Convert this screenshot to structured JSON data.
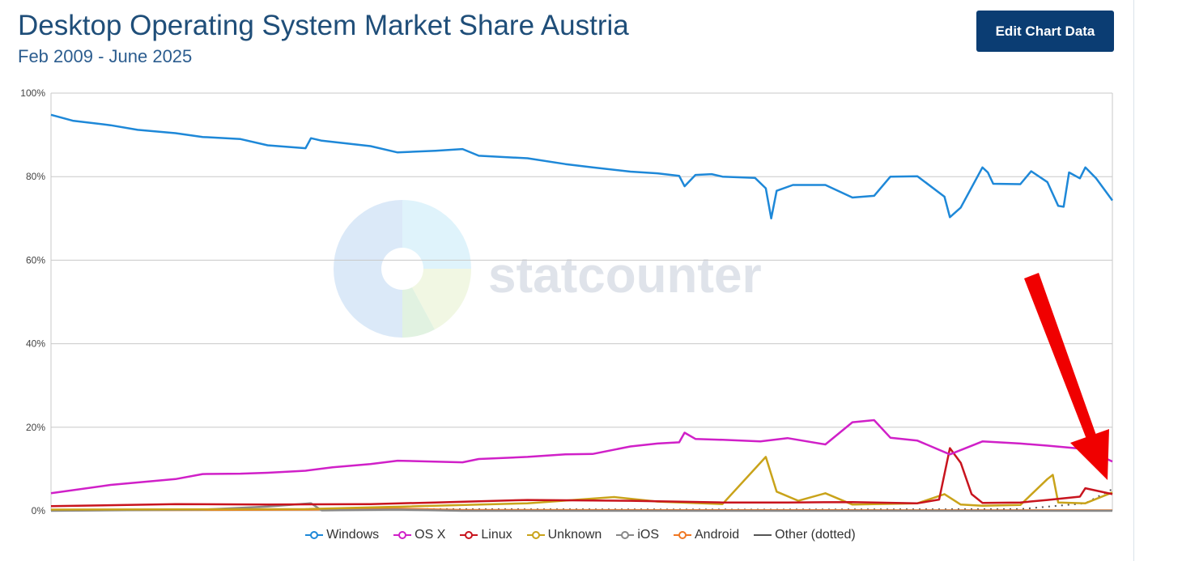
{
  "header": {
    "title": "Desktop Operating System Market Share Austria",
    "subtitle": "Feb 2009 - June 2025",
    "edit_button": "Edit Chart Data"
  },
  "watermark": {
    "text": "statcounter"
  },
  "chart_data": {
    "type": "line",
    "title": "Desktop Operating System Market Share Austria",
    "subtitle": "Feb 2009 - June 2025",
    "x_start": "2009-02",
    "x_end": "2025-06",
    "ylim": [
      0,
      100
    ],
    "y_ticks": [
      "0%",
      "20%",
      "40%",
      "60%",
      "80%",
      "100%"
    ],
    "grid": true,
    "legend_position": "bottom",
    "annotation": "red arrow pointing to the recent rise of the dotted 'Other' series",
    "series": [
      {
        "name": "Windows",
        "color": "#1e88d8",
        "dotted": false,
        "points": [
          [
            "2009-02",
            94.8
          ],
          [
            "2009-06",
            93.4
          ],
          [
            "2010-01",
            92.3
          ],
          [
            "2010-06",
            91.2
          ],
          [
            "2011-01",
            90.4
          ],
          [
            "2011-06",
            89.5
          ],
          [
            "2012-01",
            89.0
          ],
          [
            "2012-06",
            87.5
          ],
          [
            "2013-01",
            86.8
          ],
          [
            "2013-02",
            89.2
          ],
          [
            "2013-04",
            88.6
          ],
          [
            "2014-01",
            87.3
          ],
          [
            "2014-06",
            85.8
          ],
          [
            "2015-01",
            86.2
          ],
          [
            "2015-06",
            86.6
          ],
          [
            "2015-09",
            85.0
          ],
          [
            "2016-06",
            84.4
          ],
          [
            "2017-01",
            83.0
          ],
          [
            "2017-06",
            82.2
          ],
          [
            "2018-01",
            81.2
          ],
          [
            "2018-06",
            80.8
          ],
          [
            "2018-10",
            80.2
          ],
          [
            "2018-11",
            77.7
          ],
          [
            "2019-01",
            80.4
          ],
          [
            "2019-04",
            80.6
          ],
          [
            "2019-06",
            80.0
          ],
          [
            "2019-12",
            79.7
          ],
          [
            "2020-02",
            77.2
          ],
          [
            "2020-03",
            70.0
          ],
          [
            "2020-04",
            76.6
          ],
          [
            "2020-07",
            78.0
          ],
          [
            "2021-01",
            78.0
          ],
          [
            "2021-06",
            75.0
          ],
          [
            "2021-10",
            75.4
          ],
          [
            "2022-01",
            80.0
          ],
          [
            "2022-06",
            80.1
          ],
          [
            "2022-11",
            75.2
          ],
          [
            "2022-12",
            70.3
          ],
          [
            "2023-02",
            72.6
          ],
          [
            "2023-06",
            82.2
          ],
          [
            "2023-07",
            81.0
          ],
          [
            "2023-08",
            78.3
          ],
          [
            "2024-01",
            78.2
          ],
          [
            "2024-03",
            81.3
          ],
          [
            "2024-06",
            78.7
          ],
          [
            "2024-08",
            73.0
          ],
          [
            "2024-09",
            72.8
          ],
          [
            "2024-10",
            81.0
          ],
          [
            "2024-12",
            79.6
          ],
          [
            "2025-01",
            82.2
          ],
          [
            "2025-03",
            79.6
          ],
          [
            "2025-06",
            74.3
          ]
        ]
      },
      {
        "name": "OS X",
        "color": "#d020c8",
        "dotted": false,
        "points": [
          [
            "2009-02",
            4.2
          ],
          [
            "2010-01",
            6.2
          ],
          [
            "2011-01",
            7.6
          ],
          [
            "2011-06",
            8.8
          ],
          [
            "2012-01",
            8.9
          ],
          [
            "2012-06",
            9.1
          ],
          [
            "2013-01",
            9.6
          ],
          [
            "2013-06",
            10.4
          ],
          [
            "2014-01",
            11.2
          ],
          [
            "2014-06",
            12.0
          ],
          [
            "2015-06",
            11.6
          ],
          [
            "2015-09",
            12.4
          ],
          [
            "2016-06",
            12.9
          ],
          [
            "2017-01",
            13.5
          ],
          [
            "2017-06",
            13.6
          ],
          [
            "2018-01",
            15.4
          ],
          [
            "2018-06",
            16.1
          ],
          [
            "2018-10",
            16.4
          ],
          [
            "2018-11",
            18.7
          ],
          [
            "2019-01",
            17.2
          ],
          [
            "2019-06",
            17.0
          ],
          [
            "2020-01",
            16.6
          ],
          [
            "2020-06",
            17.4
          ],
          [
            "2021-01",
            15.9
          ],
          [
            "2021-06",
            21.2
          ],
          [
            "2021-10",
            21.7
          ],
          [
            "2022-01",
            17.5
          ],
          [
            "2022-06",
            16.8
          ],
          [
            "2022-12",
            13.5
          ],
          [
            "2023-06",
            16.6
          ],
          [
            "2024-01",
            16.1
          ],
          [
            "2024-06",
            15.6
          ],
          [
            "2024-12",
            14.9
          ],
          [
            "2025-03",
            13.6
          ],
          [
            "2025-06",
            11.8
          ]
        ]
      },
      {
        "name": "Linux",
        "color": "#c8141e",
        "dotted": false,
        "points": [
          [
            "2009-02",
            1.1
          ],
          [
            "2011-01",
            1.6
          ],
          [
            "2012-06",
            1.5
          ],
          [
            "2014-01",
            1.6
          ],
          [
            "2015-01",
            2.0
          ],
          [
            "2016-06",
            2.6
          ],
          [
            "2018-01",
            2.4
          ],
          [
            "2019-06",
            2.0
          ],
          [
            "2020-06",
            2.0
          ],
          [
            "2021-06",
            2.1
          ],
          [
            "2022-06",
            1.8
          ],
          [
            "2022-10",
            2.7
          ],
          [
            "2022-12",
            15.0
          ],
          [
            "2023-02",
            11.5
          ],
          [
            "2023-04",
            4.0
          ],
          [
            "2023-06",
            1.9
          ],
          [
            "2024-01",
            2.0
          ],
          [
            "2024-06",
            2.6
          ],
          [
            "2024-12",
            3.4
          ],
          [
            "2025-01",
            5.4
          ],
          [
            "2025-06",
            4.0
          ]
        ]
      },
      {
        "name": "Unknown",
        "color": "#c9a31a",
        "dotted": false,
        "points": [
          [
            "2009-02",
            0.3
          ],
          [
            "2013-01",
            0.4
          ],
          [
            "2016-06",
            1.8
          ],
          [
            "2017-10",
            3.3
          ],
          [
            "2018-06",
            2.2
          ],
          [
            "2019-06",
            1.6
          ],
          [
            "2020-02",
            12.9
          ],
          [
            "2020-04",
            4.6
          ],
          [
            "2020-08",
            2.4
          ],
          [
            "2021-01",
            4.2
          ],
          [
            "2021-06",
            1.5
          ],
          [
            "2022-06",
            1.8
          ],
          [
            "2022-11",
            4.0
          ],
          [
            "2023-02",
            1.5
          ],
          [
            "2023-06",
            1.2
          ],
          [
            "2024-01",
            1.4
          ],
          [
            "2024-06",
            7.6
          ],
          [
            "2024-07",
            8.6
          ],
          [
            "2024-08",
            2.0
          ],
          [
            "2025-01",
            1.8
          ],
          [
            "2025-06",
            4.4
          ]
        ]
      },
      {
        "name": "iOS",
        "color": "#888888",
        "dotted": false,
        "points": [
          [
            "2009-02",
            0.0
          ],
          [
            "2011-06",
            0.3
          ],
          [
            "2012-06",
            1.0
          ],
          [
            "2013-02",
            1.8
          ],
          [
            "2013-04",
            0.1
          ],
          [
            "2014-06",
            0.3
          ],
          [
            "2015-06",
            0.0
          ],
          [
            "2025-06",
            0.0
          ]
        ]
      },
      {
        "name": "Android",
        "color": "#f07823",
        "dotted": false,
        "points": [
          [
            "2009-02",
            0.1
          ],
          [
            "2010-06",
            0.2
          ],
          [
            "2011-01",
            0.2
          ],
          [
            "2013-01",
            0.3
          ],
          [
            "2014-06",
            0.5
          ],
          [
            "2015-06",
            0.2
          ],
          [
            "2025-06",
            0.1
          ]
        ]
      },
      {
        "name": "Other (dotted)",
        "color": "#555555",
        "dotted": true,
        "points": [
          [
            "2009-02",
            0.2
          ],
          [
            "2015-01",
            0.4
          ],
          [
            "2020-01",
            0.3
          ],
          [
            "2024-01",
            0.4
          ],
          [
            "2025-01",
            1.8
          ],
          [
            "2025-06",
            5.2
          ]
        ]
      }
    ]
  }
}
